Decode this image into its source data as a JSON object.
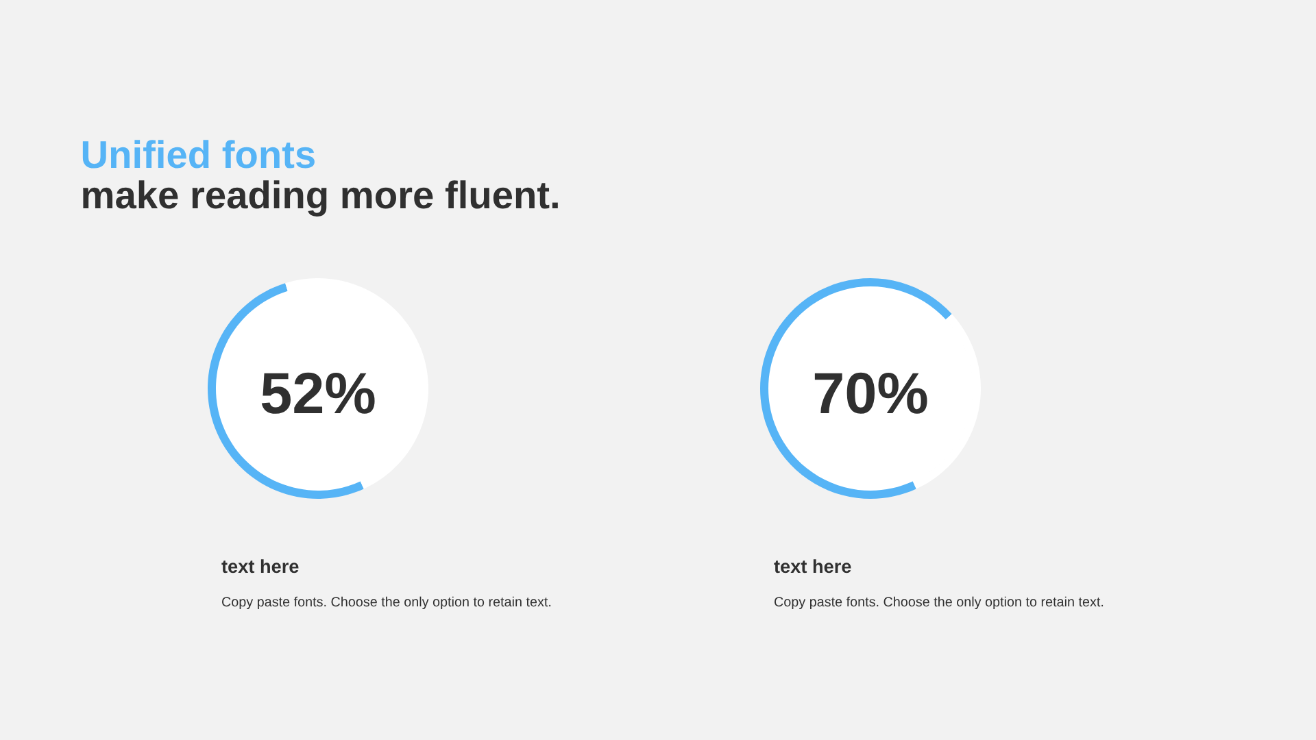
{
  "chart_data": [
    {
      "type": "donut",
      "title": "Unified fonts",
      "subtitle": "make reading more fluent.",
      "categories": [
        null,
        null
      ],
      "values": [
        52,
        48
      ],
      "colors": [
        "#56b4f6",
        "#ffffff"
      ],
      "value_labels": [
        "52%",
        null
      ],
      "annotations": [
        "text here",
        "Copy paste fonts. Choose the only option to retain text."
      ]
    },
    {
      "type": "donut",
      "categories": [
        null,
        null
      ],
      "values": [
        70,
        30
      ],
      "colors": [
        "#56b4f6",
        "#ffffff"
      ],
      "value_labels": [
        "70%",
        null
      ],
      "annotations": [
        "text here",
        "Copy paste fonts. Choose the only option to retain text."
      ]
    }
  ]
}
